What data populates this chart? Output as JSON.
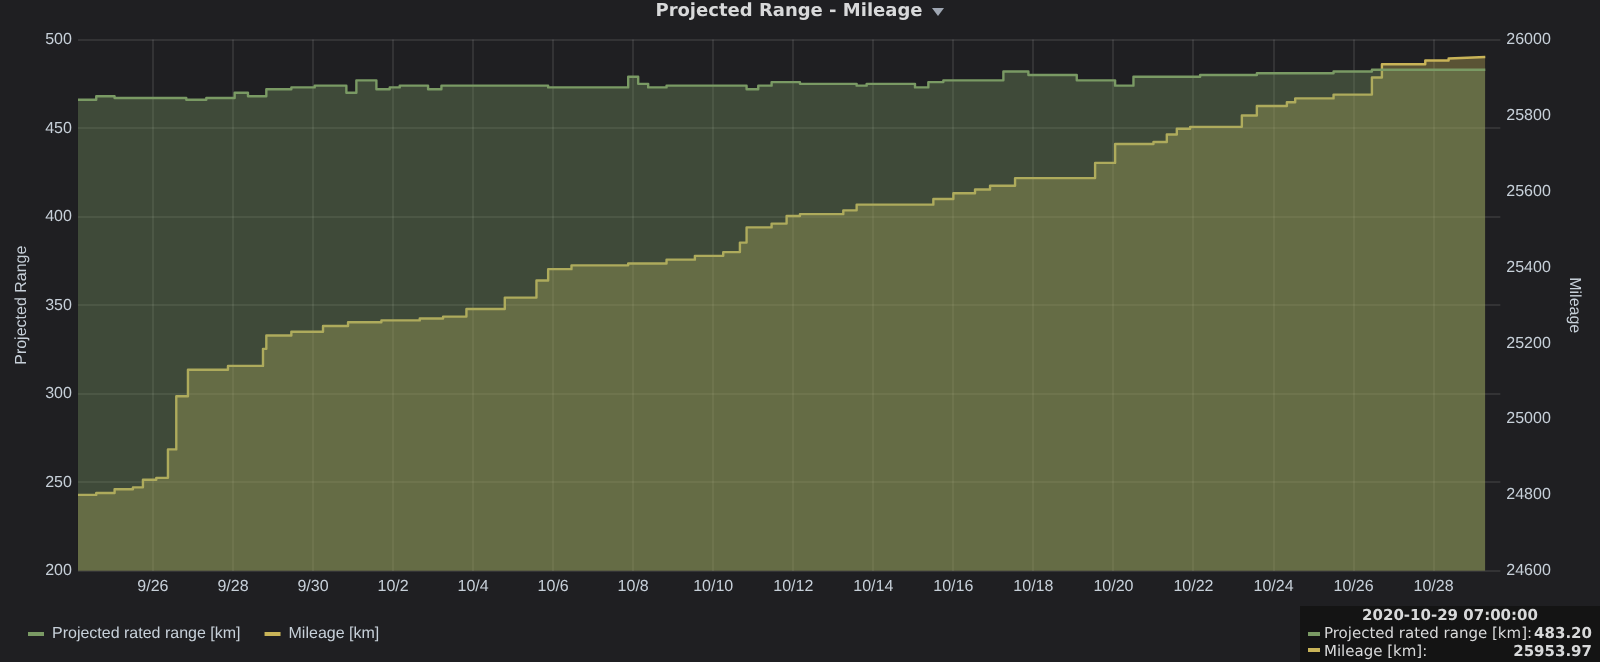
{
  "chart_data": {
    "type": "area",
    "title": "Projected Range - Mileage",
    "ylabel": "Projected Range",
    "y2label": "Mileage",
    "xlim": [
      "2020-09-24T03:00",
      "2020-10-29T16:00"
    ],
    "xticks": [
      {
        "value": "2020-09-26",
        "label": "9/26"
      },
      {
        "value": "2020-09-28",
        "label": "9/28"
      },
      {
        "value": "2020-09-30",
        "label": "9/30"
      },
      {
        "value": "2020-10-02",
        "label": "10/2"
      },
      {
        "value": "2020-10-04",
        "label": "10/4"
      },
      {
        "value": "2020-10-06",
        "label": "10/6"
      },
      {
        "value": "2020-10-08",
        "label": "10/8"
      },
      {
        "value": "2020-10-10",
        "label": "10/10"
      },
      {
        "value": "2020-10-12",
        "label": "10/12"
      },
      {
        "value": "2020-10-14",
        "label": "10/14"
      },
      {
        "value": "2020-10-16",
        "label": "10/16"
      },
      {
        "value": "2020-10-18",
        "label": "10/18"
      },
      {
        "value": "2020-10-20",
        "label": "10/20"
      },
      {
        "value": "2020-10-22",
        "label": "10/22"
      },
      {
        "value": "2020-10-24",
        "label": "10/24"
      },
      {
        "value": "2020-10-26",
        "label": "10/26"
      },
      {
        "value": "2020-10-28",
        "label": "10/28"
      }
    ],
    "ylim": [
      200,
      500
    ],
    "yticks": [
      200,
      250,
      300,
      350,
      400,
      450,
      500
    ],
    "y2lim": [
      24600,
      26000
    ],
    "y2ticks": [
      24600,
      24800,
      25000,
      25200,
      25400,
      25600,
      25800,
      26000
    ],
    "grid": true,
    "legend": "bottom left",
    "marker": "none",
    "series": [
      {
        "name": "Projected rated range [km]",
        "color": "#7a9a64",
        "x": [
          "2020-09-24T03:00",
          "2020-09-24T14:00",
          "2020-09-24T14:00",
          "2020-09-25T01:00",
          "2020-09-25T01:00",
          "2020-09-26T20:00",
          "2020-09-26T20:00",
          "2020-09-27T08:00",
          "2020-09-27T08:00",
          "2020-09-28T01:00",
          "2020-09-28T01:00",
          "2020-09-28T09:00",
          "2020-09-28T09:00",
          "2020-09-28T20:00",
          "2020-09-28T20:00",
          "2020-09-29T11:00",
          "2020-09-29T11:00",
          "2020-09-30T01:00",
          "2020-09-30T01:00",
          "2020-09-30T20:00",
          "2020-09-30T20:00",
          "2020-10-01T02:00",
          "2020-10-01T02:00",
          "2020-10-01T14:00",
          "2020-10-01T14:00",
          "2020-10-01T22:00",
          "2020-10-01T22:00",
          "2020-10-02T04:00",
          "2020-10-02T04:00",
          "2020-10-02T21:00",
          "2020-10-02T21:00",
          "2020-10-03T05:00",
          "2020-10-03T05:00",
          "2020-10-05T21:00",
          "2020-10-05T21:00",
          "2020-10-07T21:00",
          "2020-10-07T21:00",
          "2020-10-08T03:00",
          "2020-10-08T03:00",
          "2020-10-08T09:00",
          "2020-10-08T09:00",
          "2020-10-08T20:00",
          "2020-10-08T20:00",
          "2020-10-10T20:00",
          "2020-10-10T20:00",
          "2020-10-11T03:00",
          "2020-10-11T03:00",
          "2020-10-11T11:00",
          "2020-10-11T11:00",
          "2020-10-12T04:00",
          "2020-10-12T04:00",
          "2020-10-13T14:00",
          "2020-10-13T14:00",
          "2020-10-13T20:00",
          "2020-10-13T20:00",
          "2020-10-15T01:00",
          "2020-10-15T01:00",
          "2020-10-15T09:00",
          "2020-10-15T09:00",
          "2020-10-15T18:00",
          "2020-10-15T18:00",
          "2020-10-17T06:00",
          "2020-10-17T06:00",
          "2020-10-17T21:00",
          "2020-10-17T21:00",
          "2020-10-19T02:00",
          "2020-10-19T02:00",
          "2020-10-20T01:00",
          "2020-10-20T01:00",
          "2020-10-20T12:00",
          "2020-10-20T12:00",
          "2020-10-22T04:00",
          "2020-10-22T04:00",
          "2020-10-23T14:00",
          "2020-10-23T14:00",
          "2020-10-25T12:00",
          "2020-10-25T12:00",
          "2020-10-26T11:00",
          "2020-10-26T11:00",
          "2020-10-29T07:00"
        ],
        "values": [
          466,
          466,
          468,
          468,
          467,
          467,
          466,
          466,
          467,
          467,
          470,
          470,
          468,
          468,
          472,
          472,
          473,
          473,
          474,
          474,
          470,
          470,
          477,
          477,
          472,
          472,
          473,
          473,
          474,
          474,
          472,
          472,
          474,
          474,
          473,
          473,
          479,
          479,
          475,
          475,
          473,
          473,
          474,
          474,
          472,
          472,
          474,
          474,
          476,
          476,
          475,
          475,
          474,
          474,
          475,
          475,
          473,
          473,
          476,
          476,
          477,
          477,
          482,
          482,
          480,
          480,
          477,
          477,
          474,
          474,
          479,
          479,
          480,
          480,
          481,
          481,
          482,
          482,
          483,
          483
        ]
      },
      {
        "name": "Mileage [km]",
        "color": "#c9b458",
        "axis": "y2",
        "x": [
          "2020-09-24T03:00",
          "2020-09-24T14:00",
          "2020-09-24T14:00",
          "2020-09-25T01:00",
          "2020-09-25T01:00",
          "2020-09-25T12:00",
          "2020-09-25T12:00",
          "2020-09-25T18:00",
          "2020-09-25T18:00",
          "2020-09-26T02:00",
          "2020-09-26T02:00",
          "2020-09-26T09:00",
          "2020-09-26T09:00",
          "2020-09-26T14:00",
          "2020-09-26T14:00",
          "2020-09-26T21:00",
          "2020-09-26T21:00",
          "2020-09-27T21:00",
          "2020-09-27T21:00",
          "2020-09-28T18:00",
          "2020-09-28T18:00",
          "2020-09-28T20:00",
          "2020-09-28T20:00",
          "2020-09-29T11:00",
          "2020-09-29T11:00",
          "2020-09-30T06:00",
          "2020-09-30T06:00",
          "2020-09-30T21:00",
          "2020-09-30T21:00",
          "2020-10-01T17:00",
          "2020-10-01T17:00",
          "2020-10-02T16:00",
          "2020-10-02T16:00",
          "2020-10-03T06:00",
          "2020-10-03T06:00",
          "2020-10-03T20:00",
          "2020-10-03T20:00",
          "2020-10-04T19:00",
          "2020-10-04T19:00",
          "2020-10-05T14:00",
          "2020-10-05T14:00",
          "2020-10-05T21:00",
          "2020-10-05T21:00",
          "2020-10-06T11:00",
          "2020-10-06T11:00",
          "2020-10-07T21:00",
          "2020-10-07T21:00",
          "2020-10-08T20:00",
          "2020-10-08T20:00",
          "2020-10-09T13:00",
          "2020-10-09T13:00",
          "2020-10-10T06:00",
          "2020-10-10T06:00",
          "2020-10-10T16:00",
          "2020-10-10T16:00",
          "2020-10-10T20:00",
          "2020-10-10T20:00",
          "2020-10-11T11:00",
          "2020-10-11T11:00",
          "2020-10-11T20:00",
          "2020-10-11T20:00",
          "2020-10-12T04:00",
          "2020-10-12T04:00",
          "2020-10-13T06:00",
          "2020-10-13T06:00",
          "2020-10-13T14:00",
          "2020-10-13T14:00",
          "2020-10-15T12:00",
          "2020-10-15T12:00",
          "2020-10-16T00:00",
          "2020-10-16T00:00",
          "2020-10-16T13:00",
          "2020-10-16T13:00",
          "2020-10-16T22:00",
          "2020-10-16T22:00",
          "2020-10-17T13:00",
          "2020-10-17T13:00",
          "2020-10-19T13:00",
          "2020-10-19T13:00",
          "2020-10-20T01:00",
          "2020-10-20T01:00",
          "2020-10-21T00:00",
          "2020-10-21T00:00",
          "2020-10-21T08:00",
          "2020-10-21T08:00",
          "2020-10-21T14:00",
          "2020-10-21T14:00",
          "2020-10-21T22:00",
          "2020-10-21T22:00",
          "2020-10-23T05:00",
          "2020-10-23T05:00",
          "2020-10-23T14:00",
          "2020-10-23T14:00",
          "2020-10-24T08:00",
          "2020-10-24T08:00",
          "2020-10-24T13:00",
          "2020-10-24T13:00",
          "2020-10-25T12:00",
          "2020-10-25T12:00",
          "2020-10-26T11:00",
          "2020-10-26T11:00",
          "2020-10-26T17:00",
          "2020-10-26T17:00",
          "2020-10-27T19:00",
          "2020-10-27T19:00",
          "2020-10-28T09:00",
          "2020-10-28T09:00",
          "2020-10-29T07:00"
        ],
        "values": [
          24800,
          24800,
          24805,
          24805,
          24815,
          24815,
          24820,
          24820,
          24840,
          24840,
          24845,
          24845,
          24920,
          24920,
          25060,
          25060,
          25130,
          25130,
          25140,
          25140,
          25185,
          25185,
          25220,
          25220,
          25230,
          25230,
          25245,
          25245,
          25255,
          25255,
          25260,
          25260,
          25265,
          25265,
          25270,
          25270,
          25290,
          25290,
          25320,
          25320,
          25365,
          25365,
          25395,
          25395,
          25405,
          25405,
          25410,
          25410,
          25420,
          25420,
          25430,
          25430,
          25440,
          25440,
          25465,
          25465,
          25505,
          25505,
          25515,
          25515,
          25535,
          25535,
          25540,
          25540,
          25550,
          25550,
          25565,
          25565,
          25580,
          25580,
          25595,
          25595,
          25605,
          25605,
          25615,
          25615,
          25635,
          25635,
          25675,
          25675,
          25725,
          25725,
          25730,
          25730,
          25750,
          25750,
          25765,
          25765,
          25770,
          25770,
          25800,
          25800,
          25825,
          25825,
          25835,
          25835,
          25845,
          25845,
          25855,
          25855,
          25900,
          25900,
          25935,
          25935,
          25945,
          25945,
          25950,
          25954
        ]
      }
    ],
    "annotations": [
      "2020-10-29 07:00:00",
      "Projected rated range [km]:",
      "483.20",
      "Mileage [km]:",
      "25953.97"
    ]
  }
}
